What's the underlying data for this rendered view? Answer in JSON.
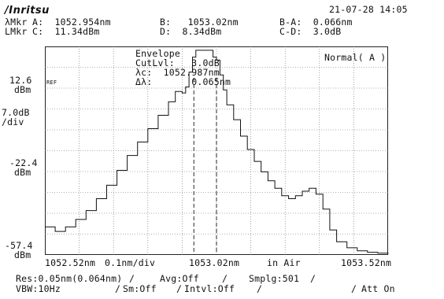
{
  "header": {
    "brand": "/Inritsu",
    "timestamp": "21-07-28 14:05"
  },
  "markers": {
    "row1_label": "λMkr",
    "row1_a": "A:  1052.954nm",
    "row1_b": "B:   1053.02nm",
    "row1_ba": "B-A:  0.066nm",
    "row2_label": "LMkr",
    "row2_c": "C:  11.34dBm",
    "row2_d": "D:  8.34dBm",
    "row2_cd": "C-D:  3.0dB"
  },
  "plot": {
    "mode": "Normal( A )",
    "analysis": {
      "title": "Envelope",
      "cutlvl": "CutLvl:   3.0dB",
      "center": "λc:  1052.987nm",
      "width": "Δλ:       0.065nm"
    },
    "ref_tag": "REF",
    "y_ticks": {
      "top_value": "12.6",
      "top_unit": "dBm",
      "scale_value": "7.0dB",
      "scale_unit": "/div",
      "mid_value": "-22.4",
      "mid_unit": "dBm",
      "bottom_value": "-57.4",
      "bottom_unit": "dBm"
    },
    "x_ticks": {
      "start": "1052.52nm",
      "span": "0.1nm/div",
      "center": "1053.02nm",
      "medium": "in Air",
      "stop": "1053.52nm"
    }
  },
  "footer": {
    "res": "Res:0.05nm(0.064nm)",
    "avg": "Avg:Off",
    "smplg": "Smplg:501",
    "vbw": "VBW:10Hz",
    "sm": "Sm:Off",
    "intvl": "Intvl:Off",
    "att": "Att On",
    "sep": "/"
  },
  "chart_data": {
    "type": "line",
    "xlim": [
      1052.52,
      1053.52
    ],
    "ylim": [
      -57.4,
      12.6
    ],
    "x_unit": "nm",
    "y_unit": "dBm",
    "grid": true,
    "markers_x": [
      1052.954,
      1053.02
    ],
    "series": [
      {
        "x": [
          1052.52,
          1052.55,
          1052.58,
          1052.61,
          1052.64,
          1052.67,
          1052.7,
          1052.73,
          1052.76,
          1052.79,
          1052.82,
          1052.85,
          1052.88,
          1052.9,
          1052.92,
          1052.93,
          1052.94,
          1052.95,
          1052.96,
          1052.97,
          1052.98,
          1052.99,
          1053.0,
          1053.01,
          1053.02,
          1053.03,
          1053.04,
          1053.05,
          1053.07,
          1053.09,
          1053.11,
          1053.13,
          1053.15,
          1053.17,
          1053.19,
          1053.21,
          1053.23,
          1053.25,
          1053.27,
          1053.29,
          1053.31,
          1053.33,
          1053.35,
          1053.37,
          1053.4,
          1053.43,
          1053.46,
          1053.49,
          1053.52
        ],
        "y": [
          -48.0,
          -49.5,
          -48.0,
          -45.5,
          -42.5,
          -38.5,
          -34.0,
          -29.0,
          -24.0,
          -19.5,
          -15.0,
          -10.5,
          -6.0,
          -2.5,
          -3.0,
          -1.0,
          4.0,
          9.0,
          11.3,
          11.3,
          11.3,
          11.3,
          11.3,
          9.0,
          8.0,
          3.0,
          -2.0,
          -7.0,
          -12.0,
          -17.5,
          -22.0,
          -26.0,
          -29.5,
          -32.5,
          -35.0,
          -37.5,
          -38.5,
          -37.5,
          -36.0,
          -35.0,
          -37.0,
          -42.0,
          -49.0,
          -53.0,
          -55.0,
          -56.0,
          -56.5,
          -56.8,
          -57.0
        ]
      }
    ]
  }
}
